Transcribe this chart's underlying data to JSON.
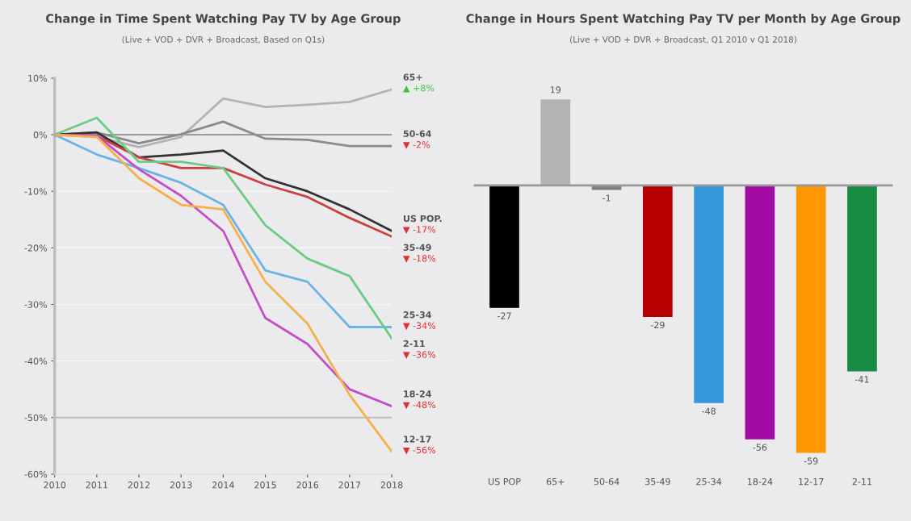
{
  "chart_data": [
    {
      "type": "line",
      "title": "Change in Time Spent Watching Pay TV by Age Group",
      "subtitle": "(Live + VOD + DVR + Broadcast, Based on Q1s)",
      "x": [
        2010,
        2011,
        2012,
        2013,
        2014,
        2015,
        2016,
        2017,
        2018
      ],
      "xlim": [
        2010,
        2018
      ],
      "xticks": [
        2010,
        2011,
        2012,
        2013,
        2014,
        2015,
        2016,
        2017,
        2018
      ],
      "ylim": [
        -60,
        10
      ],
      "yticks": [
        {
          "value": 10,
          "label": "10%"
        },
        {
          "value": 0,
          "label": "0%"
        },
        {
          "value": -10,
          "label": "-10%"
        },
        {
          "value": -20,
          "label": "-20%"
        },
        {
          "value": -30,
          "label": "-30%"
        },
        {
          "value": -40,
          "label": "-40%"
        },
        {
          "value": -50,
          "label": "-50%"
        },
        {
          "value": -60,
          "label": "-60%"
        }
      ],
      "grid": "y",
      "line_style": "solid",
      "marker": "none",
      "ref_lines": [
        {
          "axis": "y",
          "value": 0,
          "color": "#9a9a9a"
        },
        {
          "axis": "y",
          "value": -50,
          "color": "#bdbdbd"
        }
      ],
      "series": [
        {
          "name": "65+",
          "color": "#b3b3b3",
          "values": [
            0,
            -0.4,
            -2.2,
            -0.4,
            6.4,
            4.9,
            5.3,
            5.8,
            8
          ],
          "value_labels": [
            null,
            null,
            null,
            null,
            null,
            null,
            null,
            null,
            "▲ +8%"
          ]
        },
        {
          "name": "50-64",
          "color": "#8a8a8a",
          "values": [
            0,
            0.4,
            -1.5,
            0.1,
            2.3,
            -0.7,
            -0.9,
            -2.0,
            -2
          ],
          "value_labels": [
            null,
            null,
            null,
            null,
            null,
            null,
            null,
            null,
            "▼ -2%"
          ]
        },
        {
          "name": "US POP.",
          "color": "#333333",
          "values": [
            0,
            0.4,
            -4,
            -3.5,
            -2.8,
            -7.7,
            -10,
            -13.2,
            -17
          ],
          "value_labels": [
            null,
            null,
            null,
            null,
            null,
            null,
            null,
            null,
            "▼ -17%"
          ]
        },
        {
          "name": "35-49",
          "color": "#cc4040",
          "values": [
            0,
            -0.2,
            -4,
            -5.9,
            -5.9,
            -8.8,
            -11,
            -14.7,
            -18
          ],
          "value_labels": [
            null,
            null,
            null,
            null,
            null,
            null,
            null,
            null,
            "▼ -18%"
          ]
        },
        {
          "name": "25-34",
          "color": "#6cb4e6",
          "values": [
            0,
            -3.5,
            -5.9,
            -8.5,
            -12.4,
            -24,
            -26,
            -34,
            -34
          ],
          "value_labels": [
            null,
            null,
            null,
            null,
            null,
            null,
            null,
            null,
            "▼ -34%"
          ]
        },
        {
          "name": "2-11",
          "color": "#6ccb84",
          "values": [
            0,
            3,
            -4.8,
            -4.8,
            -5.9,
            -16,
            -21.9,
            -25,
            -36
          ],
          "value_labels": [
            null,
            null,
            null,
            null,
            null,
            null,
            null,
            null,
            "▼ -36%"
          ]
        },
        {
          "name": "18-24",
          "color": "#c24fc6",
          "values": [
            0,
            -0.2,
            -6.1,
            -10.8,
            -17,
            -32.4,
            -37,
            -45,
            -48
          ],
          "value_labels": [
            null,
            null,
            null,
            null,
            null,
            null,
            null,
            null,
            "▼ -48%"
          ]
        },
        {
          "name": "12-17",
          "color": "#f7b048",
          "values": [
            0,
            -0.4,
            -7.7,
            -12.4,
            -13.2,
            -26,
            -33.4,
            -46,
            -56
          ],
          "value_labels": [
            null,
            null,
            null,
            null,
            null,
            null,
            null,
            null,
            "▼ -56%"
          ]
        }
      ]
    },
    {
      "type": "bar",
      "title": "Change in Hours Spent Watching Pay TV per Month by Age Group",
      "subtitle": "(Live + VOD + DVR + Broadcast, Q1 2010 v Q1 2018)",
      "categories": [
        "US POP",
        "65+",
        "50-64",
        "35-49",
        "25-34",
        "18-24",
        "12-17",
        "2-11"
      ],
      "values": [
        -27,
        19,
        -1,
        -29,
        -48,
        -56,
        -59,
        -41
      ],
      "colors": [
        "#000000",
        "#b3b3b3",
        "#7f7f7f",
        "#b80000",
        "#3498db",
        "#a20ba4",
        "#ff9800",
        "#178c42"
      ],
      "tick_labels": "x",
      "data_labels": true
    }
  ]
}
